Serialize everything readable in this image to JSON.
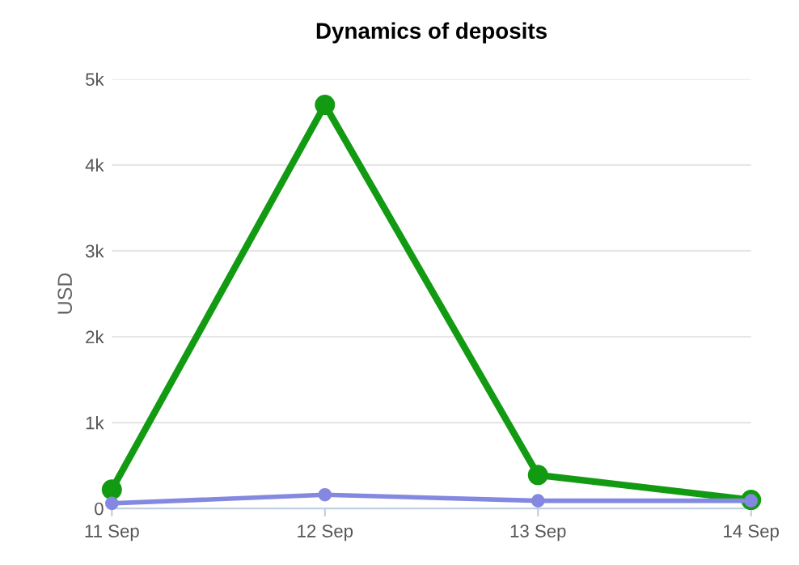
{
  "chart_data": {
    "type": "line",
    "title": "Dynamics of deposits",
    "ylabel": "USD",
    "categories": [
      "11 Sep",
      "12 Sep",
      "13 Sep",
      "14 Sep"
    ],
    "series": [
      {
        "color": "#129b12",
        "values": [
          220,
          4700,
          390,
          100
        ]
      },
      {
        "color": "#8488e0",
        "values": [
          60,
          160,
          90,
          90
        ]
      }
    ],
    "ylim": [
      0,
      5000
    ],
    "yticks": [
      0,
      {
        "value": 1000,
        "label": "1k"
      },
      {
        "value": 2000,
        "label": "2k"
      },
      {
        "value": 3000,
        "label": "3k"
      },
      {
        "value": 4000,
        "label": "4k"
      },
      {
        "value": 5000,
        "label": "5k"
      }
    ],
    "grid": "y",
    "marker": "circle",
    "line_style": "solid",
    "legend": false
  }
}
